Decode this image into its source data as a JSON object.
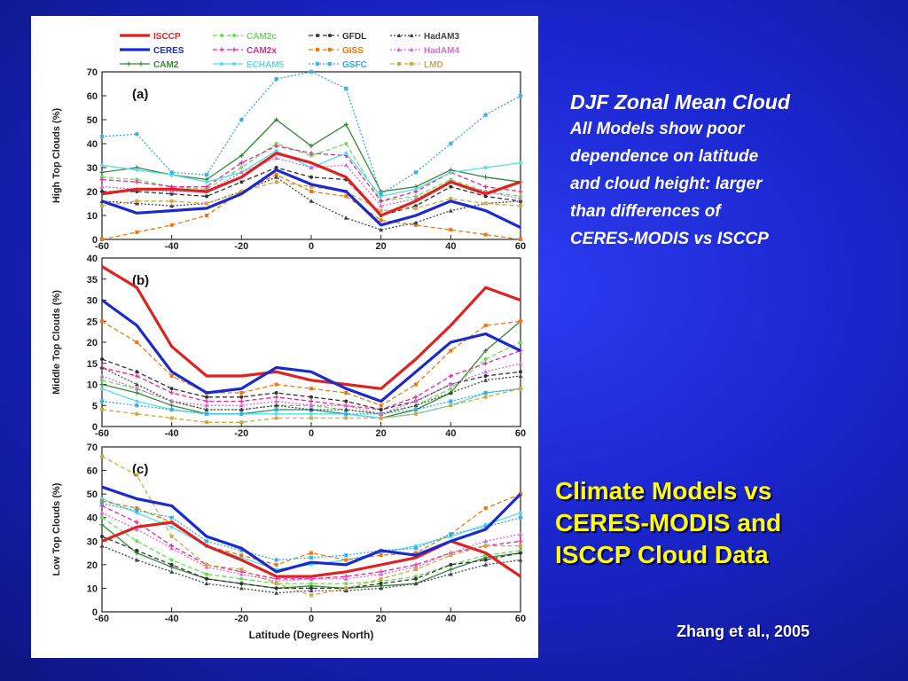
{
  "caption": {
    "title": "DJF Zonal Mean Cloud",
    "lines": [
      "All Models show poor",
      "dependence on latitude",
      "and cloud height: larger",
      "than differences of",
      "CERES-MODIS vs ISCCP"
    ]
  },
  "main_title": {
    "lines": [
      "Climate Models vs",
      "CERES-MODIS and",
      "ISCCP Cloud Data"
    ]
  },
  "citation": "Zhang et al., 2005",
  "legend": {
    "items": [
      {
        "name": "ISCCP",
        "color": "#dd2222",
        "style": "thick",
        "marker": "none"
      },
      {
        "name": "CAM2c",
        "color": "#66dd55",
        "style": "dashed",
        "marker": "circle"
      },
      {
        "name": "GFDL",
        "color": "#333333",
        "style": "dashed",
        "marker": "circle"
      },
      {
        "name": "HadAM3",
        "color": "#444444",
        "style": "dotted",
        "marker": "triangle"
      },
      {
        "name": "CERES",
        "color": "#1a2acc",
        "style": "thick",
        "marker": "none"
      },
      {
        "name": "CAM2x",
        "color": "#ee2299",
        "style": "dashed",
        "marker": "plus"
      },
      {
        "name": "GISS",
        "color": "#ee7711",
        "style": "dashed",
        "marker": "square"
      },
      {
        "name": "HadAM4",
        "color": "#dd66dd",
        "style": "dotted",
        "marker": "triangle"
      },
      {
        "name": "CAM2",
        "color": "#338833",
        "style": "solid",
        "marker": "plus"
      },
      {
        "name": "ECHAM5",
        "color": "#55ddee",
        "style": "solid",
        "marker": "circle"
      },
      {
        "name": "GSFC",
        "color": "#33aadd",
        "style": "dotted",
        "marker": "star"
      },
      {
        "name": "LMD",
        "color": "#ccaa44",
        "style": "dashed",
        "marker": "square"
      }
    ]
  },
  "chart_data": [
    {
      "type": "line",
      "panel_label": "(a)",
      "title": "",
      "xlabel": "",
      "ylabel": "High Top Clouds (%)",
      "xlim": [
        -60,
        60
      ],
      "ylim": [
        0,
        70
      ],
      "xticks": [
        -60,
        -40,
        -20,
        0,
        20,
        40,
        60
      ],
      "yticks": [
        0,
        10,
        20,
        30,
        40,
        50,
        60,
        70
      ],
      "x": [
        -60,
        -50,
        -40,
        -30,
        -20,
        -10,
        0,
        10,
        20,
        30,
        40,
        50,
        60
      ],
      "series": [
        {
          "name": "ISCCP",
          "values": [
            19,
            21,
            21,
            20,
            26,
            36,
            32,
            26,
            10,
            16,
            24,
            19,
            24
          ]
        },
        {
          "name": "CERES",
          "values": [
            16,
            11,
            12,
            13,
            19,
            29,
            23,
            20,
            6,
            10,
            16,
            12,
            5
          ]
        },
        {
          "name": "CAM2",
          "values": [
            28,
            30,
            27,
            25,
            35,
            50,
            39,
            48,
            20,
            22,
            29,
            26,
            24
          ]
        },
        {
          "name": "CAM2c",
          "values": [
            26,
            25,
            22,
            21,
            30,
            40,
            35,
            40,
            16,
            18,
            25,
            20,
            18
          ]
        },
        {
          "name": "CAM2x",
          "values": [
            25,
            24,
            22,
            22,
            32,
            39,
            36,
            35,
            16,
            20,
            28,
            22,
            20
          ]
        },
        {
          "name": "ECHAM5",
          "values": [
            31,
            29,
            27,
            24,
            28,
            37,
            30,
            36,
            18,
            21,
            28,
            30,
            32
          ]
        },
        {
          "name": "GFDL",
          "values": [
            20,
            20,
            19,
            18,
            24,
            30,
            26,
            25,
            10,
            14,
            22,
            18,
            16
          ]
        },
        {
          "name": "GISS",
          "values": [
            0,
            3,
            6,
            10,
            20,
            27,
            20,
            18,
            8,
            6,
            4,
            2,
            0
          ]
        },
        {
          "name": "GSFC",
          "values": [
            43,
            44,
            28,
            27,
            50,
            67,
            70,
            63,
            19,
            28,
            40,
            52,
            60
          ]
        },
        {
          "name": "HadAM3",
          "values": [
            16,
            15,
            14,
            15,
            20,
            26,
            16,
            9,
            4,
            7,
            12,
            15,
            16
          ]
        },
        {
          "name": "HadAM4",
          "values": [
            22,
            21,
            20,
            20,
            28,
            34,
            30,
            31,
            14,
            17,
            24,
            20,
            17
          ]
        },
        {
          "name": "LMD",
          "values": [
            14,
            16,
            16,
            15,
            20,
            24,
            22,
            20,
            12,
            13,
            17,
            15,
            14
          ]
        }
      ]
    },
    {
      "type": "line",
      "panel_label": "(b)",
      "title": "",
      "xlabel": "",
      "ylabel": "Middle Top Clouds (%)",
      "xlim": [
        -60,
        60
      ],
      "ylim": [
        0,
        40
      ],
      "xticks": [
        -60,
        -40,
        -20,
        0,
        20,
        40,
        60
      ],
      "yticks": [
        0,
        5,
        10,
        15,
        20,
        25,
        30,
        35,
        40
      ],
      "x": [
        -60,
        -50,
        -40,
        -30,
        -20,
        -10,
        0,
        10,
        20,
        30,
        40,
        50,
        60
      ],
      "series": [
        {
          "name": "ISCCP",
          "values": [
            38,
            33,
            19,
            12,
            12,
            13,
            11,
            10,
            9,
            16,
            24,
            33,
            30
          ]
        },
        {
          "name": "CERES",
          "values": [
            30,
            24,
            13,
            8,
            9,
            14,
            13,
            9,
            6,
            13,
            20,
            22,
            18
          ]
        },
        {
          "name": "CAM2",
          "values": [
            10,
            8,
            5,
            3,
            3,
            4,
            4,
            3,
            2,
            4,
            8,
            18,
            25
          ]
        },
        {
          "name": "CAM2c",
          "values": [
            11,
            9,
            6,
            4,
            4,
            5,
            5,
            4,
            3,
            5,
            9,
            16,
            20
          ]
        },
        {
          "name": "CAM2x",
          "values": [
            14,
            12,
            8,
            6,
            6,
            7,
            6,
            5,
            4,
            7,
            12,
            15,
            18
          ]
        },
        {
          "name": "ECHAM5",
          "values": [
            9,
            6,
            4,
            3,
            3,
            3,
            3,
            3,
            2,
            3,
            5,
            8,
            9
          ]
        },
        {
          "name": "GFDL",
          "values": [
            16,
            13,
            9,
            7,
            7,
            8,
            7,
            6,
            4,
            6,
            10,
            12,
            13
          ]
        },
        {
          "name": "GISS",
          "values": [
            25,
            20,
            12,
            8,
            8,
            10,
            9,
            8,
            5,
            10,
            18,
            24,
            25
          ]
        },
        {
          "name": "GSFC",
          "values": [
            6,
            5,
            4,
            3,
            3,
            4,
            4,
            3,
            3,
            4,
            6,
            8,
            9
          ]
        },
        {
          "name": "HadAM3",
          "values": [
            14,
            10,
            6,
            4,
            4,
            5,
            4,
            4,
            3,
            5,
            8,
            11,
            12
          ]
        },
        {
          "name": "HadAM4",
          "values": [
            12,
            9,
            6,
            5,
            5,
            6,
            5,
            5,
            3,
            6,
            10,
            13,
            15
          ]
        },
        {
          "name": "LMD",
          "values": [
            4,
            3,
            2,
            1,
            1,
            2,
            2,
            2,
            2,
            3,
            5,
            7,
            9
          ]
        }
      ]
    },
    {
      "type": "line",
      "panel_label": "(c)",
      "title": "",
      "xlabel": "Latitude (Degrees North)",
      "ylabel": "Low Top Clouds (%)",
      "xlim": [
        -60,
        60
      ],
      "ylim": [
        0,
        70
      ],
      "xticks": [
        -60,
        -40,
        -20,
        0,
        20,
        40,
        60
      ],
      "yticks": [
        0,
        10,
        20,
        30,
        40,
        50,
        60,
        70
      ],
      "x": [
        -60,
        -50,
        -40,
        -30,
        -20,
        -10,
        0,
        10,
        20,
        30,
        40,
        50,
        60
      ],
      "series": [
        {
          "name": "ISCCP",
          "values": [
            30,
            36,
            38,
            28,
            22,
            15,
            15,
            17,
            20,
            23,
            30,
            25,
            15
          ]
        },
        {
          "name": "CERES",
          "values": [
            53,
            48,
            45,
            32,
            27,
            17,
            21,
            20,
            26,
            24,
            30,
            35,
            50
          ]
        },
        {
          "name": "CAM2",
          "values": [
            37,
            25,
            19,
            14,
            12,
            10,
            11,
            10,
            11,
            12,
            18,
            23,
            25
          ]
        },
        {
          "name": "CAM2c",
          "values": [
            40,
            30,
            22,
            16,
            14,
            12,
            12,
            12,
            13,
            15,
            20,
            24,
            26
          ]
        },
        {
          "name": "CAM2x",
          "values": [
            45,
            38,
            28,
            20,
            17,
            14,
            14,
            15,
            17,
            20,
            25,
            28,
            30
          ]
        },
        {
          "name": "ECHAM5",
          "values": [
            48,
            42,
            36,
            28,
            23,
            18,
            20,
            22,
            25,
            28,
            32,
            37,
            42
          ]
        },
        {
          "name": "GFDL",
          "values": [
            32,
            26,
            20,
            14,
            12,
            10,
            10,
            10,
            12,
            14,
            20,
            22,
            25
          ]
        },
        {
          "name": "GISS",
          "values": [
            47,
            44,
            38,
            28,
            24,
            20,
            25,
            22,
            24,
            25,
            33,
            44,
            50
          ]
        },
        {
          "name": "GSFC",
          "values": [
            46,
            43,
            40,
            30,
            26,
            22,
            23,
            24,
            26,
            27,
            33,
            36,
            40
          ]
        },
        {
          "name": "HadAM3",
          "values": [
            28,
            22,
            17,
            12,
            10,
            8,
            9,
            9,
            10,
            12,
            16,
            20,
            22
          ]
        },
        {
          "name": "HadAM4",
          "values": [
            42,
            35,
            27,
            19,
            16,
            13,
            14,
            14,
            16,
            19,
            25,
            30,
            33
          ]
        },
        {
          "name": "LMD",
          "values": [
            66,
            58,
            32,
            20,
            18,
            12,
            7,
            10,
            14,
            18,
            24,
            28,
            28
          ]
        }
      ]
    }
  ]
}
